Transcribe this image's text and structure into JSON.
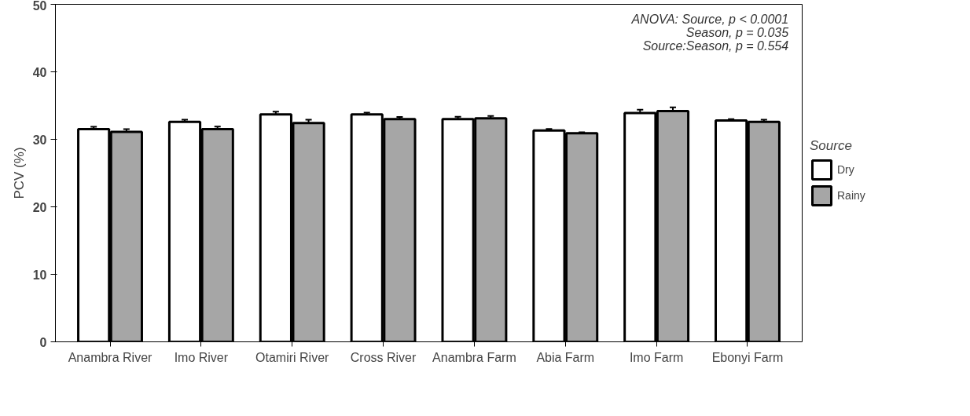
{
  "chart_data": {
    "type": "bar",
    "ylabel": "PCV (%)",
    "legend_title": "Source",
    "categories": [
      "Anambra River",
      "Imo River",
      "Otamiri River",
      "Cross River",
      "Anambra Farm",
      "Abia Farm",
      "Imo Farm",
      "Ebonyi Farm"
    ],
    "series": [
      {
        "name": "Dry",
        "color": "#ffffff",
        "values": [
          31.5,
          32.6,
          33.7,
          33.7,
          33.0,
          31.3,
          33.9,
          32.8
        ],
        "errors": [
          0.35,
          0.3,
          0.4,
          0.25,
          0.35,
          0.25,
          0.5,
          0.2
        ]
      },
      {
        "name": "Rainy",
        "color": "#a6a6a6",
        "values": [
          31.1,
          31.5,
          32.4,
          33.0,
          33.1,
          30.9,
          34.2,
          32.6
        ],
        "errors": [
          0.4,
          0.4,
          0.5,
          0.3,
          0.35,
          0.15,
          0.55,
          0.3
        ]
      }
    ],
    "ylim": [
      0,
      50
    ],
    "yticks": [
      0,
      10,
      20,
      30,
      40,
      50
    ],
    "grid": false,
    "legend": "right",
    "annotations": [
      "ANOVA: Source, p < 0.0001",
      "Season, p = 0.035",
      "Source:Season, p = 0.554"
    ]
  }
}
